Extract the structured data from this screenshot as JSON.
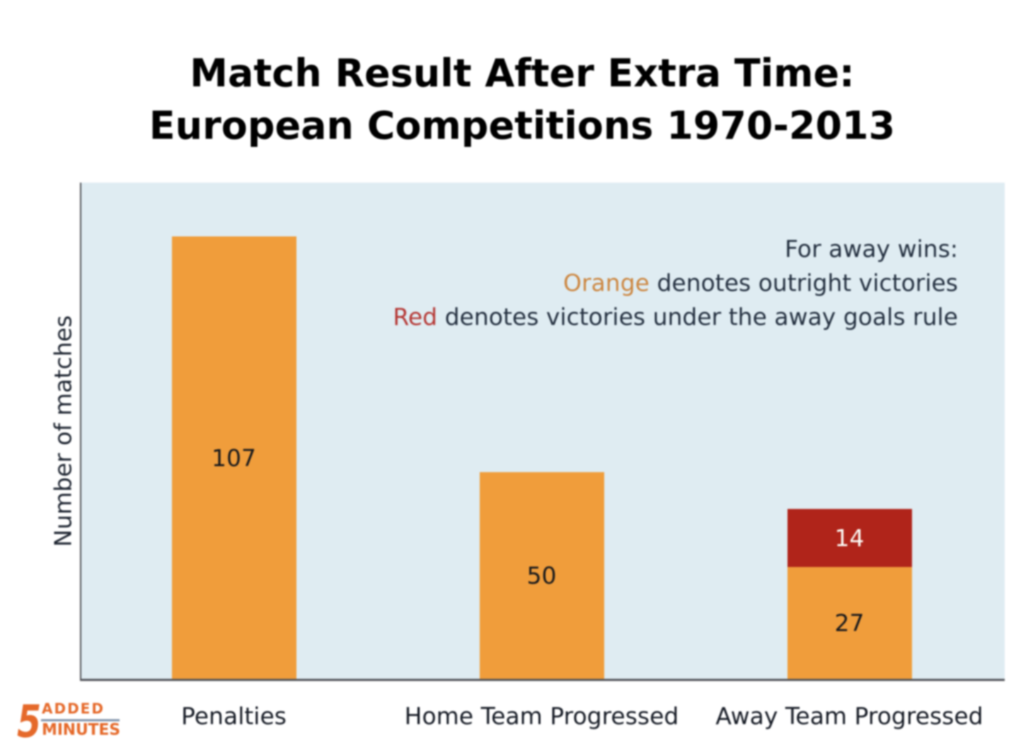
{
  "title": {
    "line1": "Match Result After Extra Time:",
    "line2": "European Competitions 1970-2013"
  },
  "annotation": {
    "line1": "For away wins:",
    "line2_keyword": "Orange",
    "line2_rest": " denotes outright victories",
    "line3_keyword": "Red",
    "line3_rest": " denotes victories under the away goals rule"
  },
  "logo": {
    "number": "5",
    "top_word": "ADDED",
    "bottom_word": "MINUTES"
  },
  "colors": {
    "orange_bar": "#f09d3b",
    "red_bar": "#b0241a",
    "plot_background": "#dfecf2",
    "axis": "#505257",
    "logo_orange": "#e5692a",
    "annotation_orange_word": "#cc8640",
    "annotation_red_word": "#b53734"
  },
  "chart_data": {
    "type": "bar",
    "subtype": "stacked",
    "title": "Match Result After Extra Time: European Competitions 1970-2013",
    "categories": [
      "Penalties",
      "Home Team Progressed",
      "Away Team Progressed"
    ],
    "series": [
      {
        "name": "Outright victories",
        "color": "#f09d3b",
        "values": [
          107,
          50,
          27
        ]
      },
      {
        "name": "Victories under the away goals rule",
        "color": "#b0241a",
        "values": [
          0,
          0,
          14
        ]
      }
    ],
    "bar_value_labels": [
      [
        "107"
      ],
      [
        "50"
      ],
      [
        "27",
        "14"
      ]
    ],
    "xlabel": "",
    "ylabel": "Number of matches",
    "ylim": [
      0,
      120
    ],
    "grid": false,
    "legend_position": "upper-right-text-annotation"
  }
}
